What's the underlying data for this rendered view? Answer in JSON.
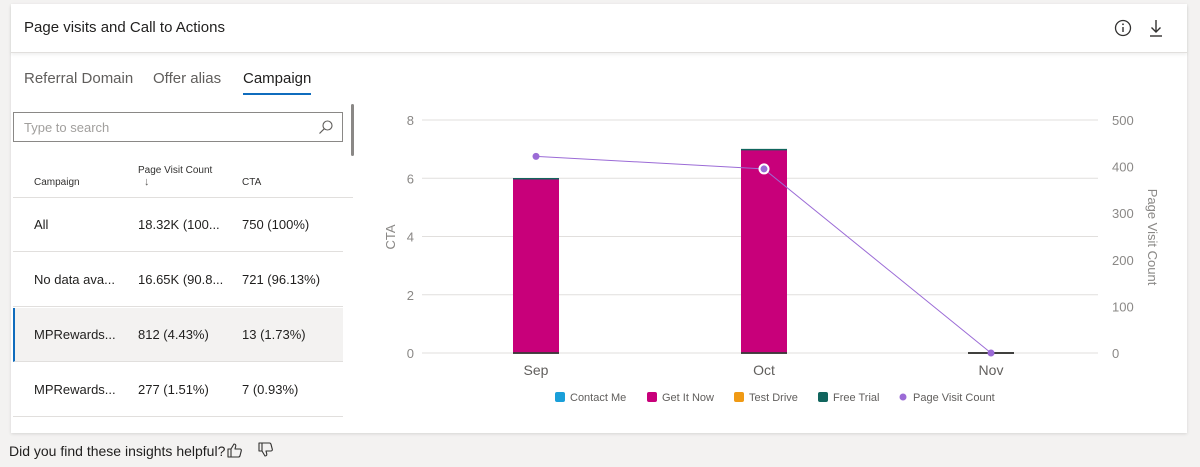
{
  "header": {
    "title": "Page visits and Call to Actions"
  },
  "tabs": [
    {
      "label": "Referral Domain"
    },
    {
      "label": "Offer alias"
    },
    {
      "label": "Campaign"
    }
  ],
  "search": {
    "placeholder": "Type to search"
  },
  "table": {
    "columns": {
      "campaign": "Campaign",
      "page_visit_count": "Page Visit Count",
      "sort_arrow": "↓",
      "cta": "CTA"
    },
    "rows": [
      {
        "campaign": "All",
        "page_visit_count": "18.32K (100...",
        "cta": "750 (100%)"
      },
      {
        "campaign": "No data ava...",
        "page_visit_count": "16.65K (90.8...",
        "cta": "721 (96.13%)"
      },
      {
        "campaign": "MPRewards...",
        "page_visit_count": "812 (4.43%)",
        "cta": "13 (1.73%)"
      },
      {
        "campaign": "MPRewards...",
        "page_visit_count": "277 (1.51%)",
        "cta": "7 (0.93%)"
      }
    ]
  },
  "feedback": {
    "question": "Did you find these insights helpful?"
  },
  "chart_data": {
    "type": "bar",
    "categories": [
      "Sep",
      "Oct",
      "Nov"
    ],
    "ylabel": "CTA",
    "y2label": "Page Visit Count",
    "ylim": [
      0,
      8
    ],
    "y2lim": [
      0,
      500
    ],
    "yticks": [
      0,
      2,
      4,
      6,
      8
    ],
    "y2ticks": [
      0,
      100,
      200,
      300,
      400,
      500
    ],
    "grid": true,
    "legend_position": "bottom",
    "series": [
      {
        "name": "Contact Me",
        "type": "bar",
        "color": "#1a9fd9",
        "values": [
          0,
          0,
          0
        ]
      },
      {
        "name": "Get It Now",
        "type": "bar",
        "color": "#c8007a",
        "values": [
          6,
          7,
          0
        ]
      },
      {
        "name": "Test Drive",
        "type": "bar",
        "color": "#f09a14",
        "values": [
          0,
          0,
          0
        ]
      },
      {
        "name": "Free Trial",
        "type": "bar",
        "color": "#11655e",
        "values": [
          0,
          0,
          0
        ]
      },
      {
        "name": "Page Visit Count",
        "type": "line",
        "axis": "right",
        "color": "#9b6bd6",
        "values": [
          422,
          395,
          0
        ]
      }
    ]
  }
}
